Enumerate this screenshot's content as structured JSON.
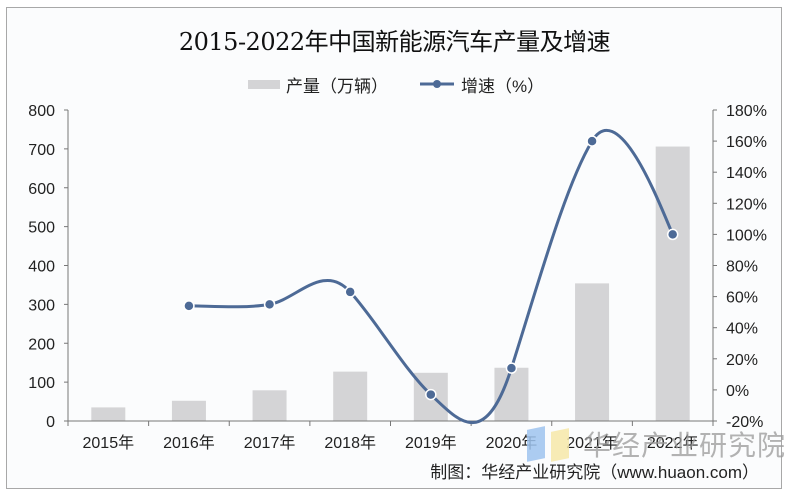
{
  "chart_data": {
    "type": "bar+line",
    "title": "2015-2022年中国新能源汽车产量及增速",
    "categories": [
      "2015年",
      "2016年",
      "2017年",
      "2018年",
      "2019年",
      "2020年",
      "2021年",
      "2022年"
    ],
    "series": [
      {
        "name": "产量（万辆）",
        "type": "bar",
        "axis": "left",
        "color": "#d4d4d6",
        "values": [
          35,
          52,
          79,
          127,
          124,
          137,
          354,
          706
        ]
      },
      {
        "name": "增速（%）",
        "type": "line",
        "axis": "right",
        "color": "#4d6a96",
        "smooth": true,
        "values": [
          null,
          54,
          55,
          63,
          -3,
          14,
          160,
          100
        ]
      }
    ],
    "left_axis": {
      "ylim": [
        0,
        800
      ],
      "ticks": [
        "0",
        "100",
        "200",
        "300",
        "400",
        "500",
        "600",
        "700",
        "800"
      ]
    },
    "right_axis": {
      "ylim": [
        -20,
        180
      ],
      "ticks": [
        "-20%",
        "0%",
        "20%",
        "40%",
        "60%",
        "80%",
        "100%",
        "120%",
        "140%",
        "160%",
        "180%"
      ]
    },
    "xlabel": "",
    "ylabel": "",
    "grid": false,
    "legend_position": "top"
  },
  "legend": {
    "bar_label": "产量（万辆）",
    "line_label": "增速（%）"
  },
  "source": "制图：华经产业研究院（www.huaon.com）",
  "watermark": "华经产业研究院"
}
